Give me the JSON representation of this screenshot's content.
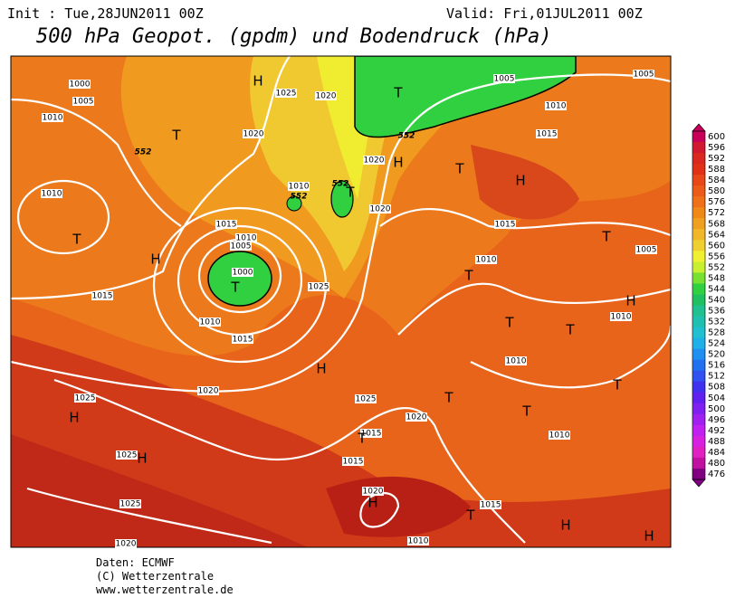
{
  "header": {
    "init": "Init : Tue,28JUN2011 00Z",
    "valid": "Valid: Fri,01JUL2011 00Z",
    "title": "500 hPa Geopot. (gpdm) und Bodendruck (hPa)"
  },
  "map": {
    "isobar_labels": [
      "1000",
      "1005",
      "1010",
      "1010",
      "1015",
      "1025",
      "1020",
      "1020",
      "1015",
      "1010",
      "1005",
      "1000",
      "1010",
      "1015",
      "1020",
      "1025",
      "1020",
      "1020",
      "1010",
      "1005",
      "1010",
      "1015",
      "1005",
      "1015",
      "1010",
      "1005",
      "1010",
      "1010",
      "1025",
      "1025",
      "1025",
      "1025",
      "1020",
      "1015",
      "1015",
      "1020",
      "1015",
      "1010",
      "1010",
      "1020"
    ],
    "pressure_centers": [
      "H",
      "T",
      "T",
      "H",
      "T",
      "T",
      "H",
      "T",
      "T",
      "H",
      "T",
      "T",
      "H",
      "T",
      "T",
      "H",
      "T",
      "T",
      "T",
      "H",
      "H",
      "T",
      "H",
      "T",
      "H",
      "H"
    ],
    "height_labels": [
      "552",
      "552",
      "552",
      "552"
    ]
  },
  "colorbar": {
    "labels": [
      600,
      596,
      592,
      588,
      584,
      580,
      576,
      572,
      568,
      564,
      560,
      556,
      552,
      548,
      544,
      540,
      536,
      532,
      528,
      524,
      520,
      516,
      512,
      508,
      504,
      500,
      496,
      492,
      488,
      484,
      480,
      476
    ],
    "colors": [
      "#c8005a",
      "#d01830",
      "#d82820",
      "#e03018",
      "#e84818",
      "#ec5c18",
      "#f07018",
      "#f08818",
      "#f0a020",
      "#f0b828",
      "#f0d030",
      "#f0f030",
      "#c8f030",
      "#78e030",
      "#30d040",
      "#20c060",
      "#20c090",
      "#20c0b0",
      "#20c0d0",
      "#20b0e8",
      "#2090f0",
      "#2070f0",
      "#3050f0",
      "#4030f0",
      "#6020f0",
      "#8020f0",
      "#a020f0",
      "#c020f0",
      "#d820e0",
      "#e020c0",
      "#c010a0",
      "#800080"
    ]
  },
  "footer": {
    "source": "Daten: ECMWF",
    "copyright": "(C) Wetterzentrale",
    "url": "www.wetterzentrale.de"
  }
}
